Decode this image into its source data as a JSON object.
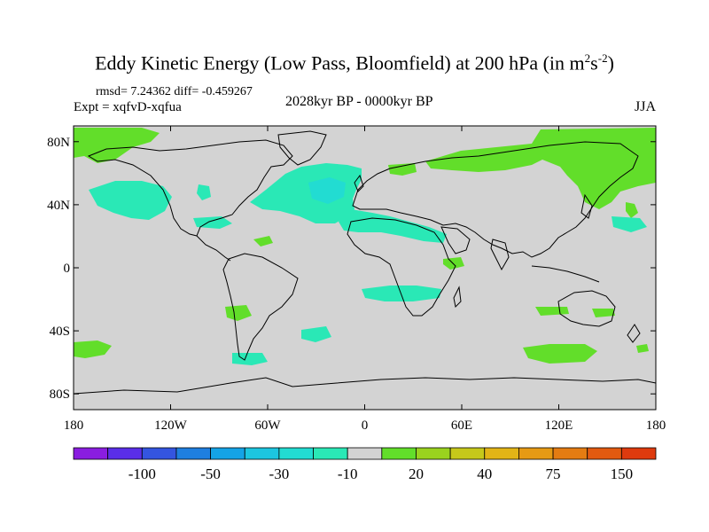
{
  "figure": {
    "title_main": "Eddy Kinetic Energy (Low Pass, Bloomfield) at 200 hPa (in m",
    "title_sup1": "2",
    "title_mid": "s",
    "title_sup2": "-2",
    "title_end": ")",
    "rmsd_label": "rmsd= 7.24362 diff= -0.459267",
    "expt_label": "Expt = xqfvD-xqfua",
    "period_label": "2028kyr BP - 0000kyr BP",
    "season_label": "JJA"
  },
  "map": {
    "projection": "cylindrical-equidistant",
    "lon_range": [
      -180,
      180
    ],
    "lat_range": [
      -90,
      90
    ],
    "lat_ticks": [
      {
        "value": 80,
        "label": "80N"
      },
      {
        "value": 40,
        "label": "40N"
      },
      {
        "value": 0,
        "label": "0"
      },
      {
        "value": -40,
        "label": "40S"
      },
      {
        "value": -80,
        "label": "80S"
      }
    ],
    "lon_ticks": [
      {
        "value": -180,
        "label": "180"
      },
      {
        "value": -120,
        "label": "120W"
      },
      {
        "value": -60,
        "label": "60W"
      },
      {
        "value": 0,
        "label": "0"
      },
      {
        "value": 60,
        "label": "60E"
      },
      {
        "value": 120,
        "label": "120E"
      },
      {
        "value": 180,
        "label": "180"
      }
    ],
    "background_color": "#d3d3d3",
    "coast_color": "#000000"
  },
  "colorbar": {
    "colors": [
      "#8a1de0",
      "#5a2ee8",
      "#3455e0",
      "#1e7fe0",
      "#14a3e6",
      "#1cc6e0",
      "#22dcd2",
      "#2ae8b6",
      "#d3d3d3",
      "#62de2a",
      "#9ad21e",
      "#c6c81a",
      "#e2b416",
      "#e69a14",
      "#e47c12",
      "#e25a10",
      "#de3a0e"
    ],
    "labels": [
      {
        "index": 2,
        "text": "-100"
      },
      {
        "index": 4,
        "text": "-50"
      },
      {
        "index": 6,
        "text": "-30"
      },
      {
        "index": 8,
        "text": "-10"
      },
      {
        "index": 10,
        "text": "20"
      },
      {
        "index": 12,
        "text": "40"
      },
      {
        "index": 14,
        "text": "75"
      },
      {
        "index": 16,
        "text": "150"
      }
    ]
  }
}
